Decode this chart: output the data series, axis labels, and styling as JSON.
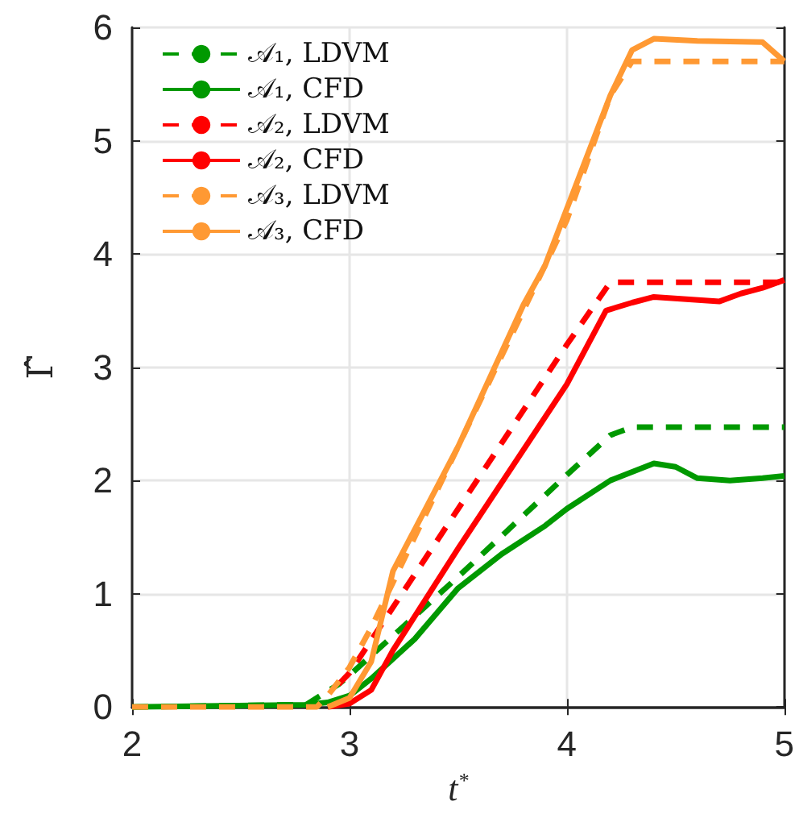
{
  "chart_data": {
    "type": "line",
    "xlabel": "t$^{*}$",
    "ylabel": "Γ̂",
    "xlim": [
      2,
      5
    ],
    "xticks": [
      2,
      3,
      4,
      5
    ],
    "ylim": [
      0,
      6
    ],
    "yticks": [
      0,
      1,
      2,
      3,
      4,
      5,
      6
    ],
    "grid": true,
    "legend": "top left",
    "marker": "none",
    "series": [
      {
        "name": "𝒜₁, LDVM",
        "color": "#009900",
        "line_style": "dashed",
        "x": [
          2,
          2.8,
          2.95,
          3.0,
          3.5,
          4.0,
          4.2,
          4.3,
          5
        ],
        "values": [
          0,
          0.02,
          0.2,
          0.28,
          1.15,
          2.05,
          2.4,
          2.47,
          2.47
        ]
      },
      {
        "name": "𝒜₁, CFD",
        "color": "#009900",
        "line_style": "solid",
        "x": [
          2,
          2.8,
          2.9,
          3.0,
          3.1,
          3.3,
          3.5,
          3.7,
          3.9,
          4.0,
          4.2,
          4.4,
          4.5,
          4.6,
          4.75,
          4.9,
          5
        ],
        "values": [
          0,
          0.02,
          0.04,
          0.1,
          0.25,
          0.6,
          1.05,
          1.35,
          1.6,
          1.75,
          2.0,
          2.15,
          2.12,
          2.02,
          2.0,
          2.02,
          2.04
        ]
      },
      {
        "name": "𝒜₂, LDVM",
        "color": "#ff0000",
        "line_style": "dashed",
        "x": [
          2.95,
          3.0,
          3.5,
          4.0,
          4.2,
          5
        ],
        "values": [
          0.2,
          0.3,
          1.75,
          3.2,
          3.75,
          3.75
        ]
      },
      {
        "name": "𝒜₂, CFD",
        "color": "#ff0000",
        "line_style": "solid",
        "x": [
          2.9,
          3.0,
          3.1,
          3.2,
          3.5,
          4.0,
          4.18,
          4.3,
          4.4,
          4.55,
          4.7,
          4.8,
          4.9,
          5
        ],
        "values": [
          0,
          0.03,
          0.15,
          0.5,
          1.4,
          2.85,
          3.5,
          3.57,
          3.62,
          3.6,
          3.58,
          3.65,
          3.7,
          3.77
        ]
      },
      {
        "name": "𝒜₃, LDVM",
        "color": "#ff9933",
        "line_style": "dashed",
        "x": [
          2,
          2.85,
          2.9,
          3.0,
          3.1,
          3.2,
          3.5,
          3.8,
          4.0,
          4.2,
          4.3,
          5
        ],
        "values": [
          0,
          0,
          0.1,
          0.35,
          0.7,
          1.1,
          2.3,
          3.5,
          4.3,
          5.4,
          5.7,
          5.7
        ]
      },
      {
        "name": "𝒜₃, CFD",
        "color": "#ff9933",
        "line_style": "solid",
        "x": [
          2.9,
          3.0,
          3.1,
          3.2,
          3.5,
          3.8,
          3.9,
          4.0,
          4.2,
          4.3,
          4.4,
          4.6,
          4.9,
          5
        ],
        "values": [
          0,
          0.08,
          0.4,
          1.2,
          2.3,
          3.55,
          3.9,
          4.4,
          5.4,
          5.8,
          5.9,
          5.88,
          5.87,
          5.7
        ]
      }
    ]
  }
}
